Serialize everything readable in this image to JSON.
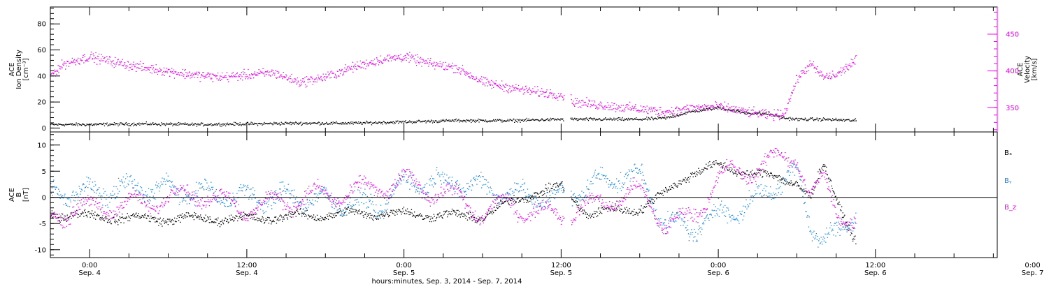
{
  "colors": {
    "density": "#000000",
    "velocity": "#ee00ee",
    "bx": "#000000",
    "by": "#1a86e0",
    "bz": "#ee00ee"
  },
  "chart_data": [
    {
      "type": "scatter",
      "panel": "plasma",
      "ylabel_lines": [
        "ACE",
        "Ion Density",
        "[cm⁻³]"
      ],
      "y2label_lines": [
        "ACE",
        "Velocity",
        "[km/s]"
      ],
      "ylim": [
        -3,
        93
      ],
      "y_ticks": [
        0,
        20,
        40,
        60,
        80
      ],
      "y2lim": [
        317,
        487
      ],
      "y2_ticks": [
        350,
        400,
        450
      ],
      "x_hours_range": [
        -3,
        69.3
      ],
      "data_end_hour": 58.5,
      "gap_hours": [
        36.2,
        36.7
      ],
      "series": [
        {
          "key": "density",
          "axis": "left",
          "noise": 0.9,
          "x": [
            -3,
            0,
            4,
            8,
            12,
            16,
            20,
            24,
            28,
            32,
            36,
            40,
            42,
            44,
            46,
            48,
            50,
            52,
            53,
            54,
            56,
            58.5
          ],
          "y": [
            3,
            3,
            3.5,
            3,
            3.5,
            4,
            4,
            5,
            6,
            6,
            7,
            7,
            7,
            8,
            13,
            16,
            12,
            11,
            8,
            7,
            7,
            6
          ]
        },
        {
          "key": "velocity",
          "axis": "right",
          "noise": 5,
          "x": [
            -3,
            -2,
            0,
            2,
            4,
            6,
            8,
            10,
            12,
            14,
            16,
            18,
            20,
            22,
            24,
            26,
            28,
            30,
            32,
            34,
            36,
            37,
            40,
            44,
            46,
            48,
            50,
            52,
            53,
            54,
            55,
            56,
            57,
            58.5
          ],
          "y": [
            395,
            410,
            420,
            412,
            405,
            400,
            395,
            392,
            395,
            398,
            385,
            392,
            405,
            415,
            420,
            410,
            405,
            385,
            378,
            372,
            368,
            358,
            352,
            345,
            350,
            352,
            345,
            340,
            342,
            390,
            410,
            392,
            395,
            415
          ]
        }
      ]
    },
    {
      "type": "scatter",
      "panel": "magnetic",
      "ylabel_lines": [
        "ACE",
        "B",
        "[nT]"
      ],
      "ylim": [
        -11.5,
        12.5
      ],
      "y_ticks": [
        -10,
        -5,
        0,
        5,
        10
      ],
      "zero_line": true,
      "legend": [
        {
          "key": "bx",
          "label": "Bₓ"
        },
        {
          "key": "by",
          "label": "Bᵧ"
        },
        {
          "key": "bz",
          "label": "B_z"
        }
      ],
      "x_hours_range": [
        -3,
        69.3
      ],
      "data_end_hour": 58.5,
      "gap_hours": [
        36.2,
        36.7
      ],
      "series": [
        {
          "key": "bx",
          "noise": 0.6,
          "wave_amp": 0.6,
          "wave_period": 4,
          "x": [
            -3,
            0,
            4,
            8,
            12,
            16,
            20,
            24,
            28,
            30,
            32,
            34,
            36,
            38,
            40,
            42,
            44,
            46,
            48,
            50,
            52,
            54,
            55,
            56,
            57,
            58.5
          ],
          "y": [
            -3,
            -3.5,
            -4,
            -4,
            -4,
            -3.5,
            -3,
            -3,
            -3.5,
            -3.5,
            -1,
            1,
            2,
            -3,
            -2.5,
            -2,
            1,
            5,
            6,
            5,
            4,
            3,
            0,
            6,
            0,
            -8.5
          ]
        },
        {
          "key": "by",
          "noise": 1.2,
          "wave_amp": 1.6,
          "wave_period": 3,
          "x": [
            -3,
            0,
            4,
            8,
            12,
            16,
            20,
            22,
            24,
            28,
            30,
            32,
            34,
            36,
            38,
            40,
            42,
            44,
            46,
            48,
            50,
            52,
            54,
            55,
            56,
            57,
            58.5
          ],
          "y": [
            1,
            1,
            2,
            1,
            0,
            0,
            -1,
            -2,
            3,
            3,
            2,
            1,
            0,
            0,
            2,
            4,
            4,
            -5,
            -6,
            -3,
            -2,
            2,
            5,
            -5,
            -8,
            -7,
            -3
          ]
        },
        {
          "key": "bz",
          "noise": 0.9,
          "wave_amp": 1.8,
          "wave_period": 3.5,
          "x": [
            -3,
            0,
            4,
            8,
            12,
            16,
            20,
            22,
            24,
            28,
            30,
            32,
            34,
            36,
            38,
            40,
            42,
            44,
            46,
            48,
            50,
            52,
            54,
            55,
            56,
            57,
            58.5
          ],
          "y": [
            -3,
            -2,
            -1,
            1,
            -2,
            0,
            1,
            2,
            3,
            0,
            -3,
            -1,
            -3,
            -3,
            -2,
            0,
            1,
            -5,
            -4,
            4,
            5,
            7,
            8,
            0,
            3,
            -2,
            -5
          ]
        }
      ]
    }
  ],
  "x_axis": {
    "ticks": [
      {
        "hour": 0,
        "time": "0:00",
        "date": "Sep. 4"
      },
      {
        "hour": 12,
        "time": "12:00",
        "date": "Sep. 4"
      },
      {
        "hour": 24,
        "time": "0:00",
        "date": "Sep. 5"
      },
      {
        "hour": 36,
        "time": "12:00",
        "date": "Sep. 5"
      },
      {
        "hour": 48,
        "time": "0:00",
        "date": "Sep. 6"
      },
      {
        "hour": 60,
        "time": "12:00",
        "date": "Sep. 6"
      },
      {
        "hour": 72,
        "time": "0:00",
        "date": "Sep. 7"
      }
    ],
    "title": "hours:minutes, Sep.  3, 2014 - Sep.  7, 2014"
  }
}
